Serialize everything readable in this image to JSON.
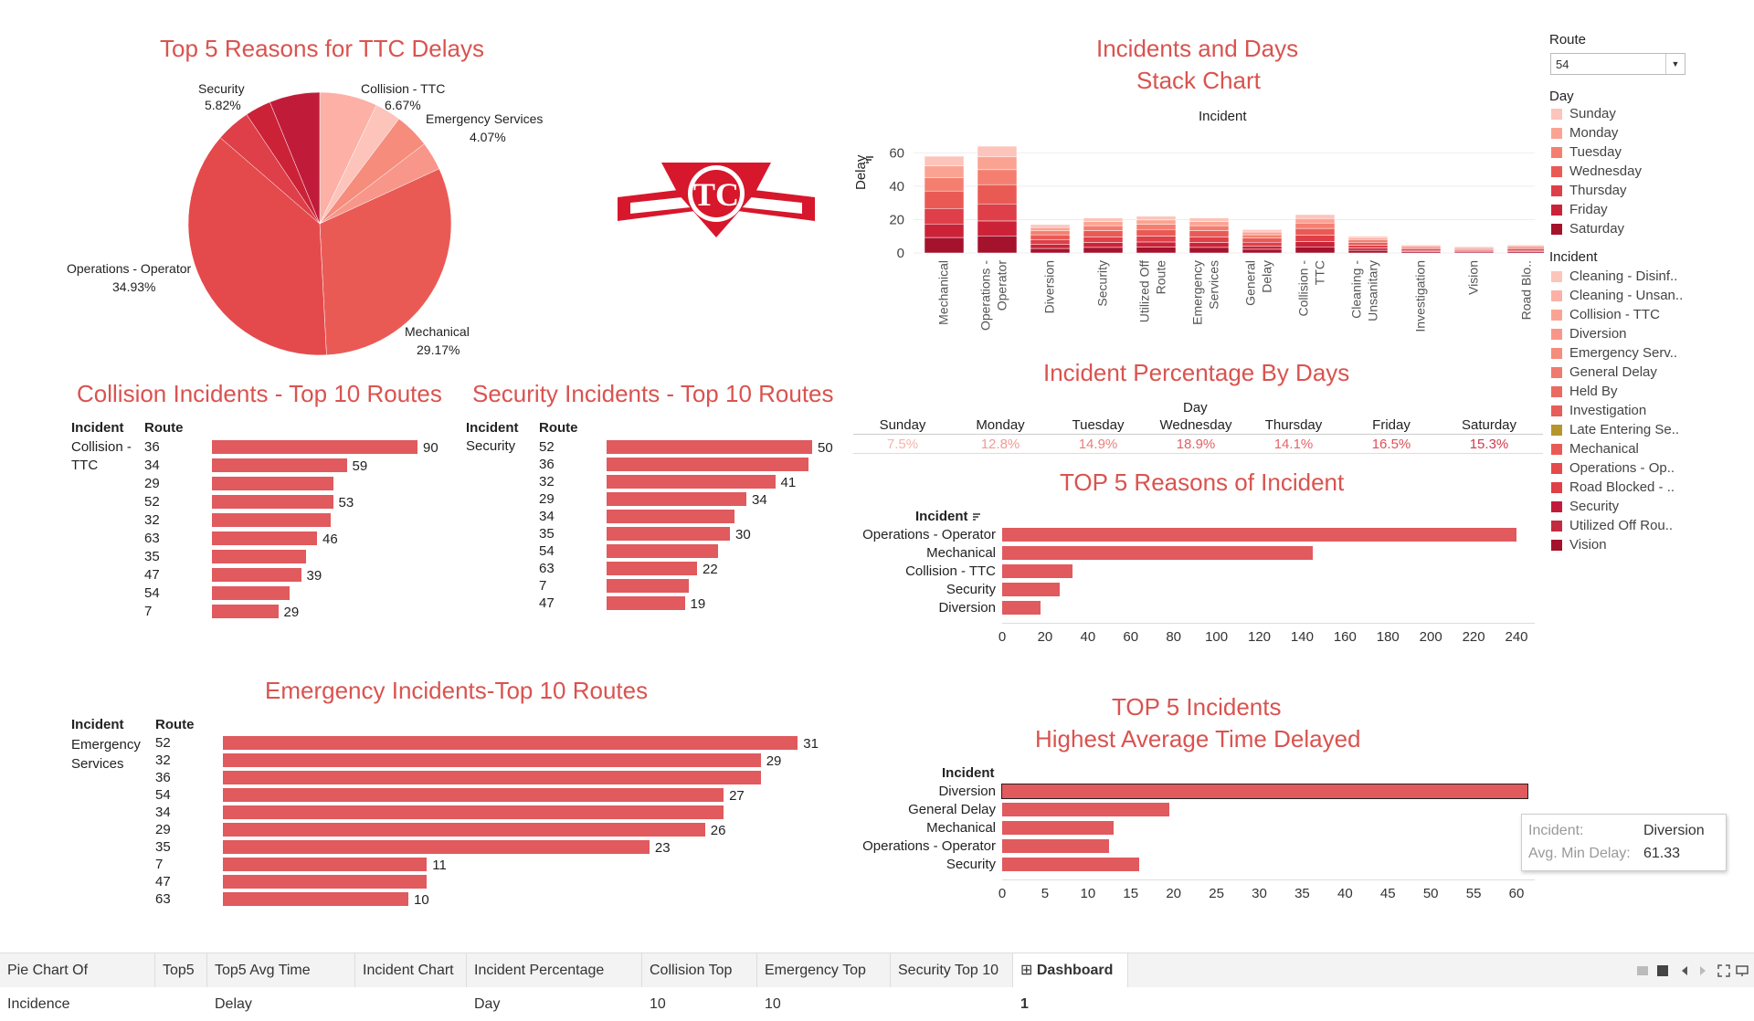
{
  "pie": {
    "title": "Top 5 Reasons for TTC Delays",
    "slices": [
      {
        "name": "Security",
        "pct": "5.82%",
        "value": 5.82,
        "color": "#c01c3a"
      },
      {
        "name": "Collision - TTC",
        "pct": "6.67%",
        "value": 6.67,
        "color": "#fcb0a6"
      },
      {
        "name": "Emergency Services",
        "pct": "4.07%",
        "value": 4.07,
        "color": "#f58c7c"
      },
      {
        "name": "Mechanical",
        "pct": "29.17%",
        "value": 29.17,
        "color": "#ea5a55"
      },
      {
        "name": "Operations - Operator",
        "pct": "34.93%",
        "value": 34.93,
        "color": "#e44a4b"
      }
    ]
  },
  "stack": {
    "title1": "Incidents and Days",
    "title2": "Stack Chart",
    "col_header": "Incident",
    "y_label": "Delay",
    "y_ticks": [
      "60",
      "40",
      "20",
      "0"
    ],
    "categories": [
      "Mechanical",
      "Operations - Operator",
      "Diversion",
      "Security",
      "Utilized Off Route",
      "Emergency Services",
      "General Delay",
      "Collision - TTC",
      "Cleaning - Unsanitary",
      "Investigation",
      "Vision",
      "Road Blo.."
    ],
    "cat_lines": [
      [
        "Mechanical"
      ],
      [
        "Operations -",
        "Operator"
      ],
      [
        "Diversion"
      ],
      [
        "Security"
      ],
      [
        "Utilized Off",
        "Route"
      ],
      [
        "Emergency",
        "Services"
      ],
      [
        "General",
        "Delay"
      ],
      [
        "Collision -",
        "TTC"
      ],
      [
        "Cleaning -",
        "Unsanitary"
      ],
      [
        "Investigation"
      ],
      [
        "Vision"
      ],
      [
        "Road Blo.."
      ]
    ],
    "totals": [
      58,
      64,
      17,
      21,
      22,
      21,
      14,
      23,
      10,
      5,
      4,
      5
    ],
    "day_colors": [
      "#fcc4bb",
      "#fba393",
      "#f47f70",
      "#ea5a55",
      "#de3f48",
      "#cc2238",
      "#a5122c"
    ]
  },
  "route_filter": {
    "label": "Route",
    "value": "54"
  },
  "day_legend": {
    "label": "Day",
    "items": [
      {
        "name": "Sunday",
        "color": "#fcc4bb"
      },
      {
        "name": "Monday",
        "color": "#fba393"
      },
      {
        "name": "Tuesday",
        "color": "#f47f70"
      },
      {
        "name": "Wednesday",
        "color": "#ea5a55"
      },
      {
        "name": "Thursday",
        "color": "#de3f48"
      },
      {
        "name": "Friday",
        "color": "#cc2238"
      },
      {
        "name": "Saturday",
        "color": "#a5122c"
      }
    ]
  },
  "incident_legend": {
    "label": "Incident",
    "items": [
      {
        "name": "Cleaning - Disinf..",
        "color": "#fcc4bb"
      },
      {
        "name": "Cleaning - Unsan..",
        "color": "#fcb0a6"
      },
      {
        "name": "Collision - TTC",
        "color": "#fba393"
      },
      {
        "name": "Diversion",
        "color": "#f8968a"
      },
      {
        "name": "Emergency Serv..",
        "color": "#f58c7c"
      },
      {
        "name": "General Delay",
        "color": "#f07a6d"
      },
      {
        "name": "Held By",
        "color": "#ea6a61"
      },
      {
        "name": "Investigation",
        "color": "#e65d5a"
      },
      {
        "name": "Late Entering Se..",
        "color": "#b5952e"
      },
      {
        "name": "Mechanical",
        "color": "#ea5a55"
      },
      {
        "name": "Operations - Op..",
        "color": "#e44a4b"
      },
      {
        "name": "Road Blocked - ..",
        "color": "#de3f48"
      },
      {
        "name": "Security",
        "color": "#c01c3a"
      },
      {
        "name": "Utilized Off Rou..",
        "color": "#c42a40"
      },
      {
        "name": "Vision",
        "color": "#a5122c"
      }
    ]
  },
  "collision": {
    "title": "Collision Incidents - Top 10 Routes",
    "h_incident": "Incident",
    "h_route": "Route",
    "incident_1": "Collision -",
    "incident_2": "TTC",
    "routes": [
      "36",
      "34",
      "29",
      "52",
      "32",
      "63",
      "35",
      "47",
      "54",
      "7"
    ],
    "values": [
      90,
      59,
      53,
      53,
      52,
      46,
      41,
      39,
      34,
      29
    ],
    "labels": [
      "90",
      "59",
      "",
      "53",
      "",
      "46",
      "",
      "39",
      "",
      "29"
    ]
  },
  "security": {
    "title": "Security Incidents - Top 10 Routes",
    "h_incident": "Incident",
    "h_route": "Route",
    "incident_1": "Security",
    "routes": [
      "52",
      "36",
      "32",
      "29",
      "34",
      "35",
      "54",
      "63",
      "7",
      "47"
    ],
    "values": [
      50,
      49,
      41,
      34,
      31,
      30,
      27,
      22,
      20,
      19
    ],
    "labels": [
      "50",
      "",
      "41",
      "34",
      "",
      "30",
      "",
      "22",
      "",
      "19"
    ]
  },
  "emergency": {
    "title": "Emergency Incidents-Top 10 Routes",
    "h_incident": "Incident",
    "h_route": "Route",
    "incident_1": "Emergency",
    "incident_2": "Services",
    "routes": [
      "52",
      "32",
      "36",
      "54",
      "34",
      "29",
      "35",
      "7",
      "47",
      "63"
    ],
    "values": [
      31,
      29,
      29,
      27,
      27,
      26,
      23,
      11,
      11,
      10
    ],
    "labels": [
      "31",
      "29",
      "",
      "27",
      "",
      "26",
      "23",
      "11",
      "",
      "10"
    ]
  },
  "days": {
    "title": "Incident Percentage By Days",
    "header": "Day",
    "names": [
      "Sunday",
      "Monday",
      "Tuesday",
      "Wednesday",
      "Thursday",
      "Friday",
      "Saturday"
    ],
    "pcts": [
      "7.5%",
      "12.8%",
      "14.9%",
      "18.9%",
      "14.1%",
      "16.5%",
      "15.3%"
    ],
    "colors": [
      "#f7b3ab",
      "#f29b92",
      "#ec7f79",
      "#e35f62",
      "#e9646a",
      "#e05058",
      "#cf3a4c"
    ]
  },
  "top5_incident": {
    "title": "TOP 5 Reasons of Incident",
    "header": "Incident",
    "names": [
      "Operations - Operator",
      "Mechanical",
      "Collision - TTC",
      "Security",
      "Diversion"
    ],
    "values": [
      240,
      145,
      33,
      27,
      18
    ],
    "ticks": [
      "0",
      "20",
      "40",
      "60",
      "80",
      "100",
      "120",
      "140",
      "160",
      "180",
      "200",
      "220",
      "240"
    ]
  },
  "top5_avg": {
    "title1": "TOP 5 Incidents",
    "title2": "Highest Average Time Delayed",
    "header": "Incident",
    "names": [
      "Diversion",
      "General Delay",
      "Mechanical",
      "Operations - Operator",
      "Security"
    ],
    "values": [
      61.33,
      19.5,
      13,
      12.5,
      16
    ],
    "ticks": [
      "0",
      "5",
      "10",
      "15",
      "20",
      "25",
      "30",
      "35",
      "40",
      "45",
      "50",
      "55",
      "60"
    ]
  },
  "tooltip": {
    "k1": "Incident:",
    "v1": "Diversion",
    "k2": "Avg. Min Delay:",
    "v2": "61.33"
  },
  "tabs": [
    "Pie Chart Of Incidence",
    "Top5",
    "Top5 Avg Time Delay",
    "Incident Chart",
    "Incident Percentage Day",
    "Collision Top 10",
    "Emergency Top 10",
    "Security Top 10",
    "Dashboard 1"
  ]
}
